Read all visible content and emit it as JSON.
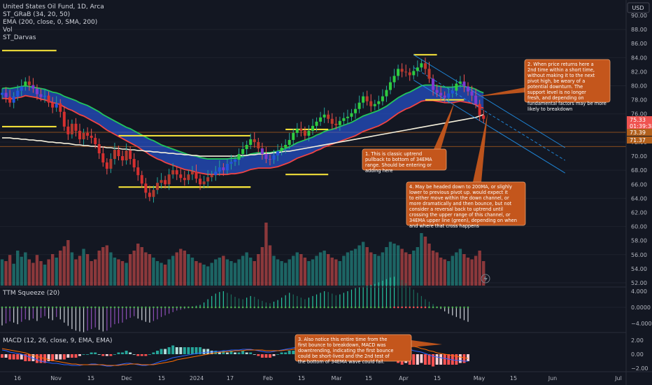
{
  "header": {
    "symbol": "United States Oil Fund, 1D, Arca",
    "indicators": [
      "ST_GRaB (34, 20, 50)",
      "EMA (200, close, 0, SMA, 200)",
      "Vol",
      "ST_Darvas"
    ]
  },
  "currency_button": "USD",
  "price_axis": {
    "ticks": [
      "90.00",
      "88.00",
      "86.00",
      "84.00",
      "82.00",
      "80.00",
      "78.00",
      "76.00",
      "74.00",
      "72.00",
      "70.00",
      "68.00",
      "66.00",
      "64.00",
      "62.00",
      "60.00",
      "58.00",
      "56.00",
      "54.00",
      "52.00"
    ],
    "last_price": "75.33",
    "countdown": "01:39:38",
    "level_upper": "73.39",
    "level_lower": "71.37"
  },
  "ttm_panel": {
    "title": "TTM Squeeze (20)",
    "ticks": [
      "4.000",
      "0.0000",
      "−4.000"
    ]
  },
  "macd_panel": {
    "title": "MACD (12, 26, close, 9, EMA, EMA)",
    "ticks": [
      "2.00",
      "0.00",
      "−2.00"
    ]
  },
  "time_axis": [
    "16",
    "Nov",
    "15",
    "Dec",
    "15",
    "2024",
    "17",
    "Feb",
    "15",
    "Mar",
    "15",
    "Apr",
    "15",
    "May",
    "15",
    "Jun",
    "Jul"
  ],
  "annotations": {
    "note1": "1. This is classic uptrend pullback to bottom of 34EMA range.  Should be entering or adding here",
    "note2": "2. When price returns here a 2nd time within a short time, without making it to the next pivot high, be weary of a potential downturn.  The support level is no longer fresh, and depending on fundamental factors may be more likely to breakdown",
    "note3": "3. Also notice this entire time from the first bounce to breakdown, MACD was downtrending, indicating the first bounce could be short-lived and the 2nd test of the bottom of 34EMA wave could fail.",
    "note4": "4. May be headed down to 200MA, or slighly lower to previous pivot up.  would expect it to either move within the down channel, or more dramatically and then bounce, but not consider a reversal back to uptrend  until crossing the upper range of this channel, or 34EMA upper line (green), depending on when and where that cross happens"
  },
  "colors": {
    "background": "#131722",
    "up_candle": "#26a69a",
    "down_candle": "#ef5350",
    "ema_upper": "#22c55e",
    "ema_lower": "#ef4444",
    "ema_fill": "#1d3fcf",
    "sma200": "#f5f0dc",
    "darvas": "#ffeb3b",
    "channel": "#2196f3",
    "annotation": "#c4561c",
    "macd_line": "#2962ff",
    "signal_line": "#ff6d00"
  },
  "chart_data": {
    "type": "candlestick",
    "symbol": "USO",
    "timeframe": "1D",
    "ylim": [
      51,
      92
    ],
    "x_range": [
      "2023-10-04",
      "2024-07-05"
    ],
    "last_price": 75.33,
    "horizontal_levels": [
      73.39,
      71.37
    ],
    "closes": [
      79.0,
      78.4,
      77.6,
      78.5,
      79.3,
      79.9,
      80.6,
      80.1,
      79.6,
      78.8,
      78.4,
      78.6,
      77.6,
      76.9,
      77.5,
      76.3,
      74.2,
      73.1,
      74.6,
      73.6,
      72.4,
      73.3,
      72.9,
      72.6,
      71.7,
      70.4,
      69.1,
      68.2,
      69.6,
      70.9,
      70.0,
      69.4,
      70.8,
      69.6,
      68.4,
      67.3,
      66.1,
      64.8,
      64.2,
      65.2,
      66.2,
      66.6,
      66.0,
      67.4,
      68.0,
      67.4,
      66.9,
      66.6,
      67.4,
      67.8,
      66.8,
      66.0,
      66.4,
      67.0,
      67.3,
      67.8,
      68.4,
      68.0,
      68.9,
      69.2,
      69.5,
      70.3,
      71.0,
      71.6,
      72.4,
      72.0,
      71.1,
      70.3,
      69.6,
      69.5,
      70.1,
      70.7,
      71.2,
      71.6,
      72.3,
      73.3,
      73.9,
      73.6,
      72.9,
      73.6,
      74.3,
      74.9,
      75.5,
      75.9,
      75.3,
      74.6,
      74.4,
      75.0,
      75.4,
      75.6,
      76.1,
      76.7,
      77.6,
      78.5,
      77.8,
      77.1,
      77.4,
      77.8,
      78.5,
      79.4,
      80.5,
      81.4,
      82.4,
      82.0,
      81.9,
      81.5,
      82.1,
      82.6,
      83.2,
      82.4,
      81.0,
      79.4,
      79.0,
      78.6,
      78.3,
      78.9,
      79.3,
      80.3,
      80.6,
      79.9,
      79.2,
      78.6,
      77.4,
      75.8,
      75.3
    ],
    "ema_upper": [
      79.6,
      79.7,
      79.6,
      79.7,
      79.8,
      79.9,
      80.0,
      79.9,
      79.8,
      79.7,
      79.6,
      79.5,
      79.3,
      79.1,
      79.0,
      78.8,
      78.5,
      78.3,
      78.1,
      77.9,
      77.6,
      77.4,
      77.2,
      76.9,
      76.6,
      76.3,
      75.9,
      75.6,
      75.3,
      75.0,
      74.7,
      74.4,
      74.1,
      73.9,
      73.6,
      73.3,
      73.0,
      72.7,
      72.4,
      72.2,
      71.9,
      71.6,
      71.4,
      71.2,
      71.0,
      70.8,
      70.6,
      70.4,
      70.2,
      70.1,
      70.0,
      69.8,
      69.7,
      69.6,
      69.6,
      69.6,
      69.6,
      69.6,
      69.6,
      69.7,
      69.7,
      69.8,
      70.0,
      70.1,
      70.3,
      70.4,
      70.5,
      70.5,
      70.5,
      70.5,
      70.6,
      70.7,
      70.9,
      71.1,
      71.3,
      71.6,
      71.9,
      72.1,
      72.3,
      72.5,
      72.7,
      73.0,
      73.2,
      73.5,
      73.7,
      73.8,
      74.0,
      74.2,
      74.4,
      74.6,
      74.8,
      75.1,
      75.4,
      75.7,
      75.9,
      76.1,
      76.3,
      76.5,
      76.8,
      77.1,
      77.5,
      77.9,
      78.3,
      78.6,
      78.9,
      79.1,
      79.4,
      79.7,
      80.0,
      80.1,
      80.1,
      80.1,
      80.0,
      79.9,
      79.8,
      79.8,
      79.8,
      79.9,
      80.0,
      79.9,
      79.8,
      79.7,
      79.5,
      79.2,
      79.0
    ],
    "ema_lower": [
      78.2,
      78.2,
      78.1,
      78.2,
      78.3,
      78.4,
      78.6,
      78.5,
      78.4,
      78.3,
      78.1,
      78.0,
      77.8,
      77.6,
      77.5,
      77.3,
      77.0,
      76.7,
      76.5,
      76.2,
      75.9,
      75.7,
      75.4,
      75.1,
      74.8,
      74.5,
      74.1,
      73.7,
      73.4,
      73.1,
      72.8,
      72.5,
      72.2,
      71.9,
      71.6,
      71.3,
      70.9,
      70.6,
      70.2,
      69.9,
      69.6,
      69.4,
      69.1,
      68.9,
      68.7,
      68.5,
      68.3,
      68.1,
      68.0,
      67.9,
      67.7,
      67.6,
      67.5,
      67.4,
      67.4,
      67.4,
      67.4,
      67.4,
      67.4,
      67.5,
      67.5,
      67.6,
      67.7,
      67.9,
      68.1,
      68.2,
      68.3,
      68.3,
      68.3,
      68.3,
      68.4,
      68.5,
      68.7,
      68.9,
      69.1,
      69.4,
      69.7,
      69.9,
      70.1,
      70.3,
      70.5,
      70.8,
      71.0,
      71.3,
      71.5,
      71.7,
      71.9,
      72.1,
      72.3,
      72.5,
      72.7,
      72.9,
      73.2,
      73.5,
      73.7,
      73.9,
      74.1,
      74.3,
      74.6,
      74.9,
      75.3,
      75.7,
      76.1,
      76.4,
      76.7,
      76.9,
      77.2,
      77.5,
      77.8,
      77.9,
      77.9,
      77.9,
      77.8,
      77.7,
      77.6,
      77.6,
      77.6,
      77.7,
      77.8,
      77.7,
      77.6,
      77.5,
      77.3,
      77.0,
      76.8
    ],
    "sma200": [
      72.6,
      72.6,
      72.6,
      72.5,
      72.5,
      72.4,
      72.4,
      72.3,
      72.3,
      72.2,
      72.2,
      72.1,
      72.0,
      72.0,
      71.9,
      71.9,
      71.8,
      71.8,
      71.7,
      71.6,
      71.6,
      71.5,
      71.5,
      71.4,
      71.4,
      71.3,
      71.3,
      71.2,
      71.2,
      71.1,
      71.1,
      71.0,
      71.0,
      70.9,
      70.9,
      70.8,
      70.8,
      70.7,
      70.7,
      70.6,
      70.6,
      70.5,
      70.5,
      70.4,
      70.4,
      70.3,
      70.3,
      70.2,
      70.2,
      70.1,
      70.1,
      70.0,
      70.0,
      70.0,
      70.0,
      70.0,
      70.0,
      70.0,
      70.0,
      70.0,
      70.0,
      70.1,
      70.1,
      70.1,
      70.2,
      70.2,
      70.3,
      70.3,
      70.4,
      70.4,
      70.5,
      70.5,
      70.6,
      70.7,
      70.7,
      70.8,
      70.9,
      71.0,
      71.1,
      71.2,
      71.3,
      71.4,
      71.5,
      71.6,
      71.7,
      71.8,
      71.9,
      72.0,
      72.1,
      72.2,
      72.3,
      72.4,
      72.5,
      72.6,
      72.7,
      72.8,
      72.9,
      73.0,
      73.1,
      73.2,
      73.3,
      73.4,
      73.5,
      73.6,
      73.7,
      73.8,
      73.9,
      74.0,
      74.1,
      74.2,
      74.3,
      74.4,
      74.5,
      74.6,
      74.7,
      74.8,
      74.9,
      75.0,
      75.1,
      75.2,
      75.3,
      75.4,
      75.5,
      75.7,
      75.9
    ],
    "volume": [
      30,
      28,
      35,
      25,
      40,
      33,
      38,
      30,
      26,
      35,
      28,
      24,
      30,
      36,
      32,
      40,
      45,
      52,
      38,
      30,
      34,
      42,
      36,
      28,
      30,
      40,
      44,
      46,
      38,
      32,
      30,
      28,
      26,
      36,
      40,
      48,
      44,
      38,
      36,
      32,
      28,
      26,
      24,
      30,
      34,
      38,
      42,
      40,
      36,
      32,
      28,
      26,
      24,
      22,
      26,
      30,
      32,
      34,
      30,
      28,
      26,
      30,
      34,
      38,
      32,
      28,
      36,
      44,
      72,
      46,
      34,
      30,
      28,
      26,
      30,
      34,
      38,
      36,
      32,
      28,
      30,
      34,
      38,
      40,
      36,
      32,
      30,
      28,
      34,
      38,
      40,
      42,
      46,
      50,
      44,
      38,
      36,
      34,
      38,
      44,
      50,
      48,
      46,
      42,
      38,
      36,
      40,
      44,
      60,
      56,
      48,
      40,
      38,
      32,
      30,
      28,
      34,
      38,
      42,
      36,
      32,
      30,
      34,
      40,
      28
    ],
    "ttm_momentum": [
      -4.5,
      -4.0,
      -3.5,
      -3.8,
      -4.2,
      -3.6,
      -3.0,
      -3.2,
      -2.8,
      -3.4,
      -2.6,
      -2.2,
      -2.8,
      -3.2,
      -2.4,
      -3.0,
      -3.8,
      -4.6,
      -5.4,
      -5.8,
      -6.0,
      -6.2,
      -5.8,
      -5.4,
      -5.0,
      -5.6,
      -6.0,
      -5.8,
      -5.0,
      -4.2,
      -4.0,
      -3.8,
      -3.0,
      -2.6,
      -2.2,
      -2.8,
      -3.2,
      -3.6,
      -3.8,
      -3.4,
      -3.0,
      -2.4,
      -2.0,
      -1.6,
      -1.2,
      -0.8,
      -0.6,
      -0.4,
      -0.2,
      0.2,
      0.4,
      0.6,
      1.2,
      2.0,
      2.8,
      3.4,
      3.8,
      4.0,
      3.6,
      3.2,
      2.6,
      2.2,
      2.0,
      2.4,
      2.8,
      2.6,
      2.0,
      1.6,
      1.2,
      1.0,
      1.4,
      1.8,
      2.4,
      3.0,
      3.6,
      3.2,
      2.8,
      2.4,
      2.0,
      2.4,
      2.8,
      3.2,
      3.6,
      4.0,
      3.8,
      3.4,
      3.0,
      3.2,
      3.6,
      4.0,
      4.4,
      4.8,
      5.0,
      5.2,
      5.4,
      5.6,
      5.8,
      6.2,
      6.6,
      7.0,
      7.4,
      7.6,
      7.2,
      6.8,
      6.0,
      5.2,
      4.4,
      3.6,
      2.8,
      2.0,
      1.4,
      0.8,
      0.2,
      -0.4,
      -1.0,
      -1.6,
      -2.0,
      -2.4,
      -2.8,
      -3.2,
      -3.6
    ],
    "macd": [
      0.6,
      0.5,
      0.3,
      0.2,
      0.1,
      0.0,
      -0.2,
      -0.4,
      -0.6,
      -0.8,
      -1.0,
      -1.1,
      -1.2,
      -1.3,
      -1.3,
      -1.4,
      -1.5,
      -1.5,
      -1.6,
      -1.6,
      -1.6,
      -1.5,
      -1.5,
      -1.4,
      -1.4,
      -1.5,
      -1.6,
      -1.7,
      -1.7,
      -1.6,
      -1.5,
      -1.4,
      -1.3,
      -1.3,
      -1.4,
      -1.5,
      -1.6,
      -1.6,
      -1.5,
      -1.4,
      -1.2,
      -1.0,
      -0.9,
      -0.7,
      -0.5,
      -0.4,
      -0.3,
      -0.2,
      -0.1,
      0.0,
      0.1,
      0.2,
      0.2,
      0.3,
      0.3,
      0.4,
      0.4,
      0.5,
      0.5,
      0.6,
      0.6,
      0.6,
      0.7,
      0.7,
      0.7,
      0.6,
      0.5,
      0.4,
      0.3,
      0.3,
      0.4,
      0.5,
      0.6,
      0.7,
      0.8,
      0.9,
      1.0,
      1.0,
      1.1,
      1.2,
      1.3,
      1.4,
      1.5,
      1.5,
      1.6,
      1.6,
      1.7,
      1.7,
      1.8,
      1.9,
      2.0,
      2.0,
      2.1,
      2.1,
      2.2,
      2.2,
      2.1,
      2.0,
      1.9,
      1.8,
      1.6,
      1.4,
      1.2,
      1.0,
      0.9,
      0.7,
      0.5,
      0.4,
      0.3,
      0.1,
      -0.1,
      -0.3,
      -0.4,
      -0.5,
      -0.6,
      -0.7,
      -0.8,
      -0.9,
      -0.9,
      -1.0,
      -1.0
    ],
    "signal": [
      0.8,
      0.7,
      0.6,
      0.5,
      0.4,
      0.3,
      0.2,
      0.0,
      -0.2,
      -0.3,
      -0.5,
      -0.6,
      -0.8,
      -0.9,
      -1.0,
      -1.1,
      -1.2,
      -1.3,
      -1.4,
      -1.4,
      -1.5,
      -1.5,
      -1.5,
      -1.5,
      -1.5,
      -1.5,
      -1.5,
      -1.6,
      -1.6,
      -1.6,
      -1.6,
      -1.5,
      -1.5,
      -1.4,
      -1.4,
      -1.4,
      -1.5,
      -1.5,
      -1.5,
      -1.5,
      -1.4,
      -1.3,
      -1.2,
      -1.1,
      -1.0,
      -0.8,
      -0.7,
      -0.6,
      -0.5,
      -0.4,
      -0.3,
      -0.2,
      -0.1,
      0.0,
      0.1,
      0.2,
      0.3,
      0.3,
      0.4,
      0.4,
      0.5,
      0.5,
      0.5,
      0.6,
      0.6,
      0.6,
      0.6,
      0.6,
      0.5,
      0.5,
      0.5,
      0.5,
      0.5,
      0.6,
      0.6,
      0.7,
      0.8,
      0.8,
      0.9,
      1.0,
      1.1,
      1.1,
      1.2,
      1.3,
      1.4,
      1.4,
      1.5,
      1.5,
      1.6,
      1.7,
      1.7,
      1.8,
      1.9,
      1.9,
      2.0,
      2.0,
      2.0,
      2.0,
      2.0,
      1.9,
      1.9,
      1.8,
      1.7,
      1.6,
      1.4,
      1.3,
      1.1,
      1.0,
      0.8,
      0.7,
      0.5,
      0.4,
      0.2,
      0.1,
      0.0,
      -0.1,
      -0.2,
      -0.3,
      -0.4,
      -0.5,
      -0.6
    ],
    "darvas_boxes": [
      {
        "x0": 0,
        "x1": 14,
        "top": 85.0,
        "bottom": 74.2
      },
      {
        "x0": 30,
        "x1": 64,
        "top": 72.9,
        "bottom": 65.6
      },
      {
        "x0": 43,
        "x1": 64,
        "top": 65.6,
        "bottom": 65.6
      },
      {
        "x0": 73,
        "x1": 84,
        "top": 73.8,
        "bottom": 67.4
      },
      {
        "x0": 106,
        "x1": 112,
        "top": 84.4,
        "bottom": 84.4
      },
      {
        "x0": 109,
        "x1": 119,
        "top": 78.0,
        "bottom": 78.0
      }
    ],
    "channel": {
      "x0": 106,
      "y0": 84.4,
      "x1": 145,
      "y1": 71.2,
      "offset": -3.6,
      "mid": -1.8
    }
  }
}
